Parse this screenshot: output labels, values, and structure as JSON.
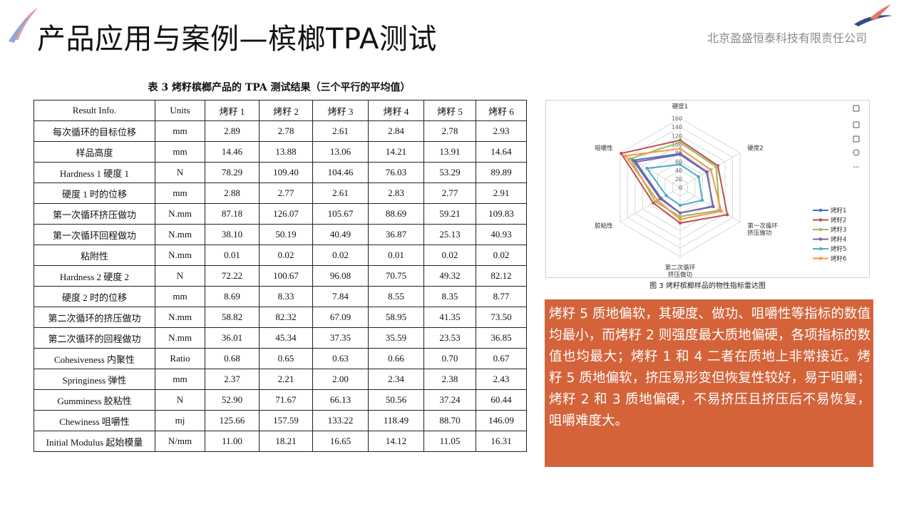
{
  "header": {
    "title": "产品应用与案例—槟榔TPA测试",
    "company": "北京盈盛恒泰科技有限责任公司"
  },
  "table": {
    "caption": "表 3 烤籽槟榔产品的 TPA 测试结果（三个平行的平均值）",
    "columns": [
      "Result Info.",
      "Units",
      "烤籽 1",
      "烤籽 2",
      "烤籽 3",
      "烤籽 4",
      "烤籽 5",
      "烤籽 6"
    ],
    "rows": [
      [
        "每次循环的目标位移",
        "mm",
        "2.89",
        "2.78",
        "2.61",
        "2.84",
        "2.78",
        "2.93"
      ],
      [
        "样品高度",
        "mm",
        "14.46",
        "13.88",
        "13.06",
        "14.21",
        "13.91",
        "14.64"
      ],
      [
        "Hardness 1 硬度 1",
        "N",
        "78.29",
        "109.40",
        "104.46",
        "76.03",
        "53.29",
        "89.89"
      ],
      [
        "硬度 1 时的位移",
        "mm",
        "2.88",
        "2.77",
        "2.61",
        "2.83",
        "2.77",
        "2.91"
      ],
      [
        "第一次循环挤压做功",
        "N.mm",
        "87.18",
        "126.07",
        "105.67",
        "88.69",
        "59.21",
        "109.83"
      ],
      [
        "第一次循环回程做功",
        "N.mm",
        "38.10",
        "50.19",
        "40.49",
        "36.87",
        "25.13",
        "40.93"
      ],
      [
        "粘附性",
        "N.mm",
        "0.01",
        "0.02",
        "0.02",
        "0.01",
        "0.02",
        "0.02"
      ],
      [
        "Hardness 2  硬度 2",
        "N",
        "72.22",
        "100.67",
        "96.08",
        "70.75",
        "49.32",
        "82.12"
      ],
      [
        "硬度 2 时的位移",
        "mm",
        "8.69",
        "8.33",
        "7.84",
        "8.55",
        "8.35",
        "8.77"
      ],
      [
        "第二次循环的挤压做功",
        "N.mm",
        "58.82",
        "82.32",
        "67.09",
        "58.95",
        "41.35",
        "73.50"
      ],
      [
        "第二次循环的回程做功",
        "N.mm",
        "36.01",
        "45.34",
        "37.35",
        "35.59",
        "23.53",
        "36.85"
      ],
      [
        "Cohesiveness  内聚性",
        "Ratio",
        "0.68",
        "0.65",
        "0.63",
        "0.66",
        "0.70",
        "0.67"
      ],
      [
        "Springiness  弹性",
        "mm",
        "2.37",
        "2.21",
        "2.00",
        "2.34",
        "2.38",
        "2.43"
      ],
      [
        "Gumminess  胶粘性",
        "N",
        "52.90",
        "71.67",
        "66.13",
        "50.56",
        "37.24",
        "60.44"
      ],
      [
        "Chewiness  咀嚼性",
        "mj",
        "125.66",
        "157.59",
        "133.22",
        "118.49",
        "88.70",
        "146.09"
      ],
      [
        "Initial Modulus 起始模量",
        "N/mm",
        "11.00",
        "18.21",
        "16.65",
        "14.12",
        "11.05",
        "16.31"
      ]
    ]
  },
  "chart_data": {
    "type": "radar",
    "axes": [
      "硬度1",
      "硬度2",
      "第一次循环\n挤压做功",
      "第二次循环\n挤压做功",
      "胶粘性",
      "咀嚼性"
    ],
    "ticks": [
      0,
      20,
      40,
      60,
      80,
      100,
      120,
      140,
      160
    ],
    "range": [
      0,
      160
    ],
    "series": [
      {
        "name": "烤籽1",
        "color": "#4472c4",
        "values": [
          78.29,
          72.22,
          87.18,
          58.82,
          52.9,
          125.66
        ]
      },
      {
        "name": "烤籽2",
        "color": "#c0504d",
        "values": [
          109.4,
          100.67,
          126.07,
          82.32,
          71.67,
          157.59
        ]
      },
      {
        "name": "烤籽3",
        "color": "#9bbb59",
        "values": [
          104.46,
          96.08,
          105.67,
          67.09,
          66.13,
          133.22
        ]
      },
      {
        "name": "烤籽4",
        "color": "#8064a2",
        "values": [
          76.03,
          70.75,
          88.69,
          58.95,
          50.56,
          118.49
        ]
      },
      {
        "name": "烤籽5",
        "color": "#4bacc6",
        "values": [
          53.29,
          49.32,
          59.21,
          41.35,
          37.24,
          88.7
        ]
      },
      {
        "name": "烤籽6",
        "color": "#f79646",
        "values": [
          89.89,
          82.12,
          109.83,
          73.5,
          60.44,
          146.09
        ]
      }
    ],
    "legend": "right",
    "caption": "图 3  烤籽槟榔样品的物性指标雷达图"
  },
  "toolbar_icons": [
    "image-icon",
    "text-style-icon",
    "copy-icon",
    "zoom-icon",
    "more-icon"
  ],
  "note": "烤籽 5 质地偏软，其硬度、做功、咀嚼性等指标的数值均最小，而烤籽 2 则强度最大质地偏硬，各项指标的数值也均最大；烤籽 1 和 4 二者在质地上非常接近。烤籽 5 质地偏软，挤压易形变但恢复性较好，易于咀嚼；烤籽 2 和 3 质地偏硬，不易挤压且挤压后不易恢复，咀嚼难度大。",
  "colors": {
    "note_bg": "#d4633a",
    "logo_red": "#c0504d",
    "logo_blue": "#2e4b8a"
  }
}
